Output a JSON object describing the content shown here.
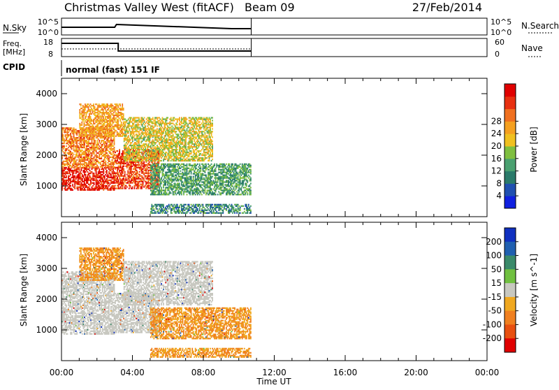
{
  "header": {
    "title": "Christmas Valley West (fitACF)",
    "beam": "Beam 09",
    "date": "27/Feb/2014"
  },
  "nsky_panel": {
    "label": "N.Sky",
    "left_ticks": [
      "10^5",
      "10^0"
    ],
    "right_ticks": [
      "10^5",
      "10^0"
    ],
    "right_label": "N.Search"
  },
  "freq_panel": {
    "label_line1": "Freq.",
    "label_line2": "[MHz]",
    "left_ticks": [
      "18",
      "8"
    ],
    "right_ticks": [
      "60",
      "0"
    ],
    "right_label": "Nave"
  },
  "cpid_panel": {
    "label": "CPID",
    "mode_text": "normal (fast) 151 IF"
  },
  "chart_data": [
    {
      "type": "heatmap",
      "ylabel": "Slant Range [km]",
      "ylim": [
        0,
        4500
      ],
      "yticks": [
        "1000",
        "2000",
        "3000",
        "4000"
      ],
      "xlim": [
        0,
        24
      ],
      "colorbar": {
        "label": "Power [dB]",
        "ticks": [
          "4",
          "8",
          "12",
          "16",
          "20",
          "24",
          "28"
        ],
        "colors": [
          "#1020e0",
          "#2050b0",
          "#2a7a6a",
          "#4aa070",
          "#7fbf40",
          "#f0c020",
          "#f5a020",
          "#f07020",
          "#e83010",
          "#e00000"
        ]
      },
      "regions": [
        {
          "desc": "near-range strong echoes",
          "t_start": 0.0,
          "t_end": 3.0,
          "range_lo": 850,
          "range_hi": 1600,
          "level": 28
        },
        {
          "desc": "mid echoes",
          "t_start": 0.0,
          "t_end": 3.0,
          "range_lo": 1600,
          "range_hi": 2900,
          "level": 22
        },
        {
          "desc": "upper echoes",
          "t_start": 1.0,
          "t_end": 3.5,
          "range_lo": 2600,
          "range_hi": 3650,
          "level": 20
        },
        {
          "desc": "descending strong band",
          "t_start": 3.0,
          "t_end": 5.5,
          "range_lo": 900,
          "range_hi": 2200,
          "level": 26
        },
        {
          "desc": "rising band",
          "t_start": 3.5,
          "t_end": 8.5,
          "range_lo": 1800,
          "range_hi": 3200,
          "level": 16
        },
        {
          "desc": "lower rising band",
          "t_start": 5.0,
          "t_end": 10.7,
          "range_lo": 700,
          "range_hi": 1700,
          "level": 10
        },
        {
          "desc": "ground scatter strip",
          "t_start": 5.0,
          "t_end": 10.7,
          "range_lo": 100,
          "range_hi": 400,
          "level": 8
        }
      ]
    },
    {
      "type": "heatmap",
      "ylabel": "Slant Range [km]",
      "ylim": [
        0,
        4500
      ],
      "yticks": [
        "1000",
        "2000",
        "3000",
        "4000"
      ],
      "xlim": [
        0,
        24
      ],
      "xticks": [
        "00:00",
        "04:00",
        "08:00",
        "12:00",
        "16:00",
        "20:00",
        "00:00"
      ],
      "xlabel": "Time UT",
      "colorbar": {
        "label": "Velocity [m s^-1]",
        "ticks": [
          "200",
          "100",
          "50",
          "15",
          "-15",
          "-50",
          "-100",
          "-200"
        ],
        "colors": [
          "#1030c0",
          "#2060b0",
          "#3a8a6a",
          "#70c040",
          "#c8c8c0",
          "#f0a820",
          "#f08020",
          "#e85010",
          "#e00000"
        ]
      },
      "regions": [
        {
          "desc": "near-range ground scatter",
          "t_start": 0.0,
          "t_end": 3.0,
          "range_lo": 850,
          "range_hi": 1600,
          "level": 0
        },
        {
          "desc": "mid gray",
          "t_start": 0.0,
          "t_end": 3.0,
          "range_lo": 1600,
          "range_hi": 2900,
          "level": 0
        },
        {
          "desc": "upper echoes",
          "t_start": 1.0,
          "t_end": 3.5,
          "range_lo": 2600,
          "range_hi": 3650,
          "level": -30
        },
        {
          "desc": "descending band",
          "t_start": 3.0,
          "t_end": 5.5,
          "range_lo": 900,
          "range_hi": 2200,
          "level": 0
        },
        {
          "desc": "rising band",
          "t_start": 3.5,
          "t_end": 8.5,
          "range_lo": 1800,
          "range_hi": 3200,
          "level": 0
        },
        {
          "desc": "lower band",
          "t_start": 5.0,
          "t_end": 10.7,
          "range_lo": 700,
          "range_hi": 1700,
          "level": -60
        },
        {
          "desc": "ground scatter strip",
          "t_start": 5.0,
          "t_end": 10.7,
          "range_lo": 100,
          "range_hi": 400,
          "level": -30
        }
      ]
    }
  ]
}
